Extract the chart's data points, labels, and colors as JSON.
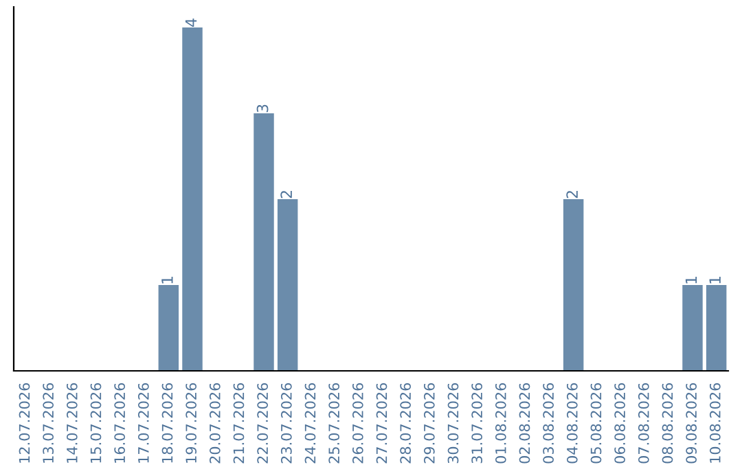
{
  "chart_data": {
    "type": "bar",
    "categories": [
      "12.07.2026",
      "13.07.2026",
      "14.07.2026",
      "15.07.2026",
      "16.07.2026",
      "17.07.2026",
      "18.07.2026",
      "19.07.2026",
      "20.07.2026",
      "21.07.2026",
      "22.07.2026",
      "23.07.2026",
      "24.07.2026",
      "25.07.2026",
      "26.07.2026",
      "27.07.2026",
      "28.07.2026",
      "29.07.2026",
      "30.07.2026",
      "31.07.2026",
      "01.08.2026",
      "02.08.2026",
      "03.08.2026",
      "04.08.2026",
      "05.08.2026",
      "06.08.2026",
      "07.08.2026",
      "08.08.2026",
      "09.08.2026",
      "10.08.2026"
    ],
    "values": [
      0,
      0,
      0,
      0,
      0,
      0,
      1,
      4,
      0,
      0,
      3,
      2,
      0,
      0,
      0,
      0,
      0,
      0,
      0,
      0,
      0,
      0,
      0,
      2,
      0,
      0,
      0,
      0,
      1,
      1
    ],
    "value_labels": [
      null,
      null,
      null,
      null,
      null,
      null,
      "1",
      "4",
      null,
      null,
      "3",
      "2",
      null,
      null,
      null,
      null,
      null,
      null,
      null,
      null,
      null,
      null,
      null,
      "2",
      null,
      null,
      null,
      null,
      "1",
      "1"
    ],
    "color": "#6b8cab",
    "tick_labels": "x",
    "grid": false
  }
}
